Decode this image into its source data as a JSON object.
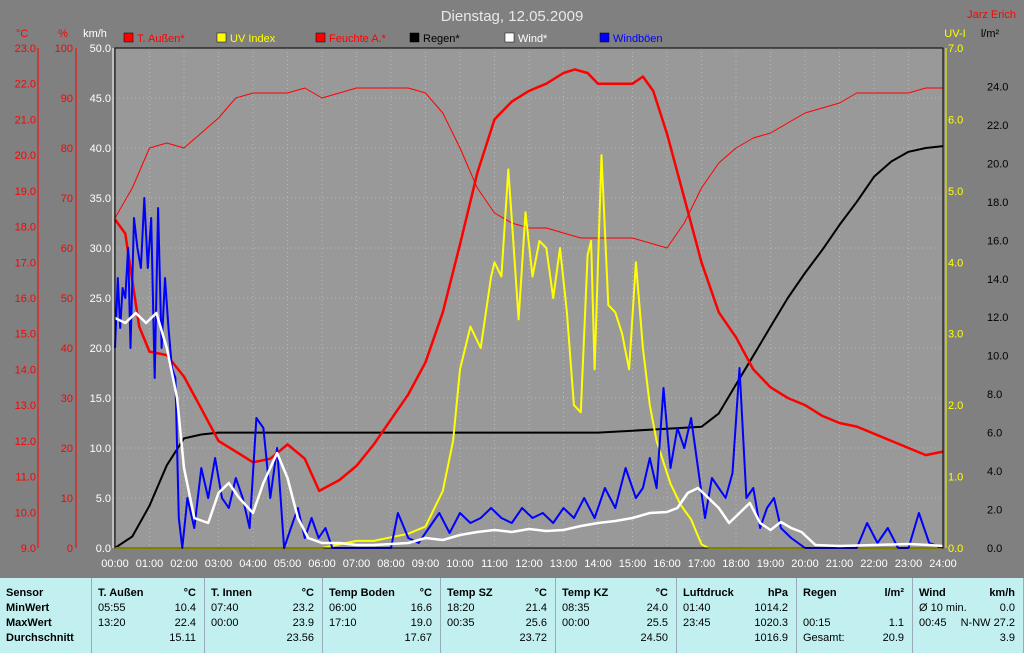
{
  "chart_data": {
    "type": "line",
    "title": "Dienstag, 12.05.2009",
    "author": "Jarz Erich",
    "x_ticks": [
      "00:00",
      "01:00",
      "02:00",
      "03:00",
      "04:00",
      "05:00",
      "06:00",
      "07:00",
      "08:00",
      "09:00",
      "10:00",
      "11:00",
      "12:00",
      "13:00",
      "14:00",
      "15:00",
      "16:00",
      "17:00",
      "18:00",
      "19:00",
      "20:00",
      "21:00",
      "22:00",
      "23:00",
      "24:00"
    ],
    "x_range_hours": [
      0,
      24
    ],
    "axes": {
      "temp": {
        "unit": "°C",
        "range": [
          9.0,
          23.0
        ],
        "ticks": [
          "23.0",
          "22.0",
          "21.0",
          "20.0",
          "19.0",
          "18.0",
          "17.0",
          "16.0",
          "15.0",
          "14.0",
          "13.0",
          "12.0",
          "11.0",
          "10.0",
          "9.0"
        ],
        "color": "#ff0000"
      },
      "humidity": {
        "unit": "%",
        "range": [
          0,
          100
        ],
        "ticks": [
          "100",
          "90",
          "80",
          "70",
          "60",
          "50",
          "40",
          "30",
          "20",
          "10",
          "0"
        ],
        "color": "#ff0000"
      },
      "wind": {
        "unit": "km/h",
        "range": [
          0,
          50
        ],
        "ticks": [
          "50.0",
          "45.0",
          "40.0",
          "35.0",
          "30.0",
          "25.0",
          "20.0",
          "15.0",
          "10.0",
          "5.0",
          "0.0"
        ],
        "color": "#ffffff"
      },
      "uv": {
        "unit": "UV-I",
        "range": [
          0,
          7
        ],
        "ticks": [
          "7.0",
          "6.0",
          "5.0",
          "4.0",
          "3.0",
          "2.0",
          "1.0",
          "0.0"
        ],
        "color": "#ffff00"
      },
      "rain": {
        "unit": "l/m²",
        "range": [
          0,
          26
        ],
        "ticks": [
          "24.0",
          "22.0",
          "20.0",
          "18.0",
          "16.0",
          "14.0",
          "12.0",
          "10.0",
          "8.0",
          "6.0",
          "4.0",
          "2.0",
          "0.0"
        ],
        "color": "#000000"
      }
    },
    "legend": [
      {
        "name": "T. Außen*",
        "color": "#ff0000"
      },
      {
        "name": "UV Index",
        "color": "#ffff00"
      },
      {
        "name": "Feuchte A.*",
        "color": "#ff0000"
      },
      {
        "name": "Regen*",
        "color": "#000000"
      },
      {
        "name": "Wind*",
        "color": "#ffffff"
      },
      {
        "name": "Windböen",
        "color": "#0000ff"
      }
    ],
    "series": [
      {
        "name": "T. Außen*",
        "axis": "temp",
        "color": "#ff0000",
        "width": 2.5,
        "x": [
          0,
          0.3,
          0.7,
          1.0,
          1.5,
          2.0,
          2.5,
          3.0,
          3.5,
          4.0,
          4.5,
          5.0,
          5.5,
          5.92,
          6.5,
          7.0,
          7.5,
          8.0,
          8.5,
          9.0,
          9.5,
          10.0,
          10.5,
          11.0,
          11.5,
          12.0,
          12.5,
          13.0,
          13.33,
          13.7,
          14.0,
          14.5,
          15.0,
          15.3,
          15.6,
          16.0,
          16.5,
          17.0,
          17.5,
          18.0,
          18.5,
          19.0,
          19.5,
          20.0,
          20.5,
          21.0,
          21.5,
          22.0,
          22.5,
          23.0,
          23.5,
          24.0
        ],
        "y": [
          18.2,
          17.8,
          15.2,
          14.5,
          14.4,
          13.8,
          12.9,
          12.0,
          11.7,
          11.4,
          11.5,
          11.9,
          11.5,
          10.6,
          10.9,
          11.3,
          11.9,
          12.6,
          13.3,
          14.2,
          15.6,
          17.5,
          19.5,
          21.0,
          21.5,
          21.8,
          22.0,
          22.3,
          22.4,
          22.3,
          22.0,
          22.0,
          22.0,
          22.2,
          21.8,
          20.6,
          18.8,
          17.0,
          15.6,
          14.9,
          14.0,
          13.5,
          13.2,
          13.0,
          12.7,
          12.5,
          12.4,
          12.2,
          12.0,
          11.8,
          11.6,
          11.7
        ]
      },
      {
        "name": "Feuchte A.*",
        "axis": "humidity",
        "color": "#ff0000",
        "width": 1,
        "x": [
          0,
          0.5,
          1.0,
          1.5,
          2.0,
          2.5,
          3.0,
          3.5,
          4.0,
          4.5,
          5.0,
          5.5,
          6.0,
          6.5,
          7.0,
          7.5,
          8.0,
          8.5,
          9.0,
          9.5,
          10.0,
          10.5,
          11.0,
          11.5,
          12.0,
          12.5,
          13.0,
          13.5,
          14.0,
          14.5,
          15.0,
          15.5,
          16.0,
          16.5,
          17.0,
          17.5,
          18.0,
          18.5,
          19.0,
          19.5,
          20.0,
          20.5,
          21.0,
          21.5,
          22.0,
          22.5,
          23.0,
          23.5,
          24.0
        ],
        "y": [
          66,
          72,
          80,
          81,
          80,
          83,
          86,
          90,
          91,
          91,
          91,
          92,
          90,
          91,
          92,
          92,
          92,
          92,
          91,
          87,
          80,
          72,
          67,
          65,
          64,
          64,
          63,
          62,
          62,
          62,
          62,
          61,
          60,
          65,
          72,
          77,
          80,
          82,
          83,
          85,
          87,
          88,
          89,
          91,
          91,
          91,
          91,
          92,
          92
        ]
      },
      {
        "name": "UV Index",
        "axis": "uv",
        "color": "#ffff00",
        "width": 2,
        "x": [
          0,
          6.0,
          6.5,
          7.0,
          7.5,
          8.0,
          8.5,
          9.0,
          9.5,
          9.8,
          10.0,
          10.3,
          10.6,
          10.9,
          11.0,
          11.2,
          11.4,
          11.5,
          11.7,
          11.9,
          12.1,
          12.3,
          12.5,
          12.7,
          12.9,
          13.1,
          13.3,
          13.5,
          13.7,
          13.8,
          13.9,
          14.1,
          14.3,
          14.5,
          14.7,
          14.9,
          15.1,
          15.3,
          15.5,
          15.7,
          15.9,
          16.1,
          16.4,
          16.7,
          17.0,
          17.2,
          17.5,
          18.0,
          24.0
        ],
        "y": [
          0,
          0,
          0.05,
          0.1,
          0.1,
          0.15,
          0.2,
          0.3,
          0.8,
          1.5,
          2.5,
          3.1,
          2.8,
          3.8,
          4.0,
          3.8,
          5.3,
          4.6,
          3.2,
          4.7,
          3.8,
          4.3,
          4.2,
          3.5,
          4.2,
          3.3,
          2.0,
          1.9,
          4.1,
          4.3,
          2.5,
          5.5,
          3.4,
          3.3,
          3.0,
          2.5,
          4.0,
          2.8,
          2.0,
          1.5,
          1.2,
          0.9,
          0.6,
          0.4,
          0.05,
          0,
          0,
          0,
          0
        ]
      },
      {
        "name": "Regen*",
        "axis": "rain",
        "color": "#000000",
        "width": 2,
        "x": [
          0,
          0.5,
          1.0,
          1.5,
          2.0,
          2.5,
          3.0,
          4.0,
          5.0,
          6.0,
          7.0,
          8.0,
          9.0,
          10.0,
          11.0,
          12.0,
          13.0,
          14.0,
          15.0,
          16.0,
          17.0,
          17.5,
          18.0,
          18.5,
          19.0,
          19.5,
          20.0,
          20.5,
          21.0,
          21.5,
          22.0,
          22.5,
          23.0,
          23.5,
          24.0
        ],
        "y": [
          0,
          0.6,
          2.2,
          4.3,
          5.7,
          5.9,
          6.0,
          6.0,
          6.0,
          6.0,
          6.0,
          6.0,
          6.0,
          6.0,
          6.0,
          6.0,
          6.0,
          6.0,
          6.1,
          6.2,
          6.3,
          7.0,
          8.5,
          10.0,
          11.5,
          13.0,
          14.3,
          15.5,
          16.8,
          18.0,
          19.3,
          20.1,
          20.6,
          20.8,
          20.9
        ]
      },
      {
        "name": "Wind*",
        "axis": "wind",
        "color": "#ffffff",
        "width": 2.5,
        "x": [
          0,
          0.3,
          0.6,
          0.9,
          1.2,
          1.5,
          1.8,
          2.0,
          2.3,
          2.7,
          3.0,
          3.3,
          3.6,
          4.0,
          4.3,
          4.7,
          5.0,
          5.3,
          5.6,
          6.0,
          6.5,
          7.0,
          7.5,
          8.0,
          8.5,
          9.0,
          9.5,
          10.0,
          10.5,
          11.0,
          11.5,
          12.0,
          12.5,
          13.0,
          13.5,
          14.0,
          14.5,
          15.0,
          15.5,
          16.0,
          16.3,
          16.6,
          16.9,
          17.2,
          17.5,
          17.8,
          18.1,
          18.4,
          18.7,
          19.0,
          19.3,
          19.6,
          19.9,
          20.3,
          21.0,
          22.0,
          23.0,
          23.6,
          24.0
        ],
        "y": [
          23.0,
          22.5,
          23.5,
          22.5,
          23.5,
          20.0,
          15.0,
          8.0,
          3.0,
          2.5,
          5.5,
          6.5,
          5.0,
          3.5,
          6.5,
          9.5,
          7.0,
          3.0,
          1.0,
          0.5,
          0.5,
          0.3,
          0.3,
          0.4,
          0.5,
          1.0,
          0.8,
          1.3,
          1.6,
          1.8,
          1.6,
          1.9,
          1.7,
          1.8,
          2.2,
          2.5,
          2.7,
          3.0,
          3.5,
          3.6,
          4.0,
          5.5,
          6.0,
          5.0,
          4.0,
          2.5,
          3.5,
          4.5,
          2.5,
          1.8,
          2.6,
          2.0,
          1.6,
          0.3,
          0.2,
          0.3,
          0.4,
          0.3,
          0.2
        ]
      },
      {
        "name": "Windböen",
        "axis": "wind",
        "color": "#0000ff",
        "width": 2,
        "x": [
          0,
          0.08,
          0.15,
          0.22,
          0.3,
          0.38,
          0.45,
          0.55,
          0.65,
          0.75,
          0.85,
          0.95,
          1.05,
          1.15,
          1.25,
          1.35,
          1.45,
          1.55,
          1.65,
          1.75,
          1.85,
          1.95,
          2.1,
          2.3,
          2.5,
          2.7,
          2.9,
          3.1,
          3.3,
          3.5,
          3.7,
          3.9,
          4.1,
          4.3,
          4.5,
          4.7,
          4.9,
          5.1,
          5.3,
          5.5,
          5.7,
          5.9,
          6.1,
          6.3,
          6.5,
          7.0,
          7.5,
          8.0,
          8.2,
          8.5,
          8.8,
          9.1,
          9.4,
          9.7,
          10.0,
          10.3,
          10.6,
          10.9,
          11.2,
          11.5,
          11.8,
          12.1,
          12.4,
          12.7,
          13.0,
          13.3,
          13.6,
          13.9,
          14.2,
          14.5,
          14.8,
          15.1,
          15.3,
          15.5,
          15.7,
          15.9,
          16.1,
          16.3,
          16.5,
          16.7,
          16.9,
          17.1,
          17.3,
          17.5,
          17.7,
          17.9,
          18.1,
          18.3,
          18.5,
          18.7,
          18.9,
          19.1,
          19.3,
          19.6,
          20.0,
          21.0,
          21.5,
          21.8,
          22.1,
          22.4,
          22.7,
          23.0,
          23.3,
          23.6,
          24.0
        ],
        "y": [
          20.0,
          27.0,
          22.0,
          26.0,
          25.0,
          30.0,
          20.0,
          33.0,
          30.0,
          28.0,
          35.0,
          28.0,
          33.0,
          17.0,
          34.0,
          20.0,
          27.0,
          22.0,
          18.0,
          17.0,
          3.0,
          0.0,
          5.0,
          2.0,
          8.0,
          5.0,
          9.0,
          5.0,
          4.0,
          7.0,
          5.0,
          2.0,
          13.0,
          12.0,
          5.0,
          10.0,
          0.0,
          2.0,
          4.0,
          1.0,
          3.0,
          1.0,
          2.0,
          0.0,
          0.0,
          0.0,
          0.0,
          0.0,
          3.5,
          1.0,
          0.5,
          2.0,
          3.5,
          1.5,
          3.5,
          2.5,
          3.0,
          4.0,
          3.0,
          2.5,
          4.0,
          3.0,
          3.5,
          2.5,
          4.0,
          3.0,
          5.0,
          3.0,
          6.0,
          4.0,
          8.0,
          5.0,
          6.0,
          9.0,
          6.0,
          16.0,
          8.0,
          12.0,
          10.0,
          13.0,
          8.0,
          3.0,
          7.0,
          6.0,
          5.0,
          7.5,
          18.0,
          5.0,
          6.0,
          2.0,
          4.0,
          5.0,
          2.0,
          1.0,
          0.0,
          0.0,
          0.0,
          2.5,
          0.5,
          2.0,
          0.0,
          0.0,
          3.5,
          0.5,
          0.0
        ]
      }
    ]
  },
  "stats": [
    {
      "header": [
        "Sensor",
        ""
      ],
      "rows": [
        [
          "MinWert",
          ""
        ],
        [
          "MaxWert",
          ""
        ],
        [
          "Durchschnitt",
          ""
        ]
      ]
    },
    {
      "header": [
        "T. Außen",
        "°C"
      ],
      "rows": [
        [
          "05:55",
          "10.4"
        ],
        [
          "13:20",
          "22.4"
        ],
        [
          "",
          "15.11"
        ]
      ]
    },
    {
      "header": [
        "T. Innen",
        "°C"
      ],
      "rows": [
        [
          "07:40",
          "23.2"
        ],
        [
          "00:00",
          "23.9"
        ],
        [
          "",
          "23.56"
        ]
      ]
    },
    {
      "header": [
        "Temp Boden",
        "°C"
      ],
      "rows": [
        [
          "06:00",
          "16.6"
        ],
        [
          "17:10",
          "19.0"
        ],
        [
          "",
          "17.67"
        ]
      ]
    },
    {
      "header": [
        "Temp SZ",
        "°C"
      ],
      "rows": [
        [
          "18:20",
          "21.4"
        ],
        [
          "00:35",
          "25.6"
        ],
        [
          "",
          "23.72"
        ]
      ]
    },
    {
      "header": [
        "Temp KZ",
        "°C"
      ],
      "rows": [
        [
          "08:35",
          "24.0"
        ],
        [
          "00:00",
          "25.5"
        ],
        [
          "",
          "24.50"
        ]
      ]
    },
    {
      "header": [
        "Luftdruck",
        "hPa"
      ],
      "rows": [
        [
          "01:40",
          "1014.2"
        ],
        [
          "23:45",
          "1020.3"
        ],
        [
          "",
          "1016.9"
        ]
      ]
    },
    {
      "header": [
        "Regen",
        "l/m²"
      ],
      "rows": [
        [
          "",
          ""
        ],
        [
          "00:15",
          "1.1"
        ],
        [
          "Gesamt:",
          "20.9"
        ]
      ]
    },
    {
      "header": [
        "Wind",
        "km/h"
      ],
      "rows": [
        [
          "Ø 10 min.",
          "0.0"
        ],
        [
          "00:45",
          "N-NW 27.2"
        ],
        [
          "",
          "3.9"
        ]
      ]
    }
  ]
}
